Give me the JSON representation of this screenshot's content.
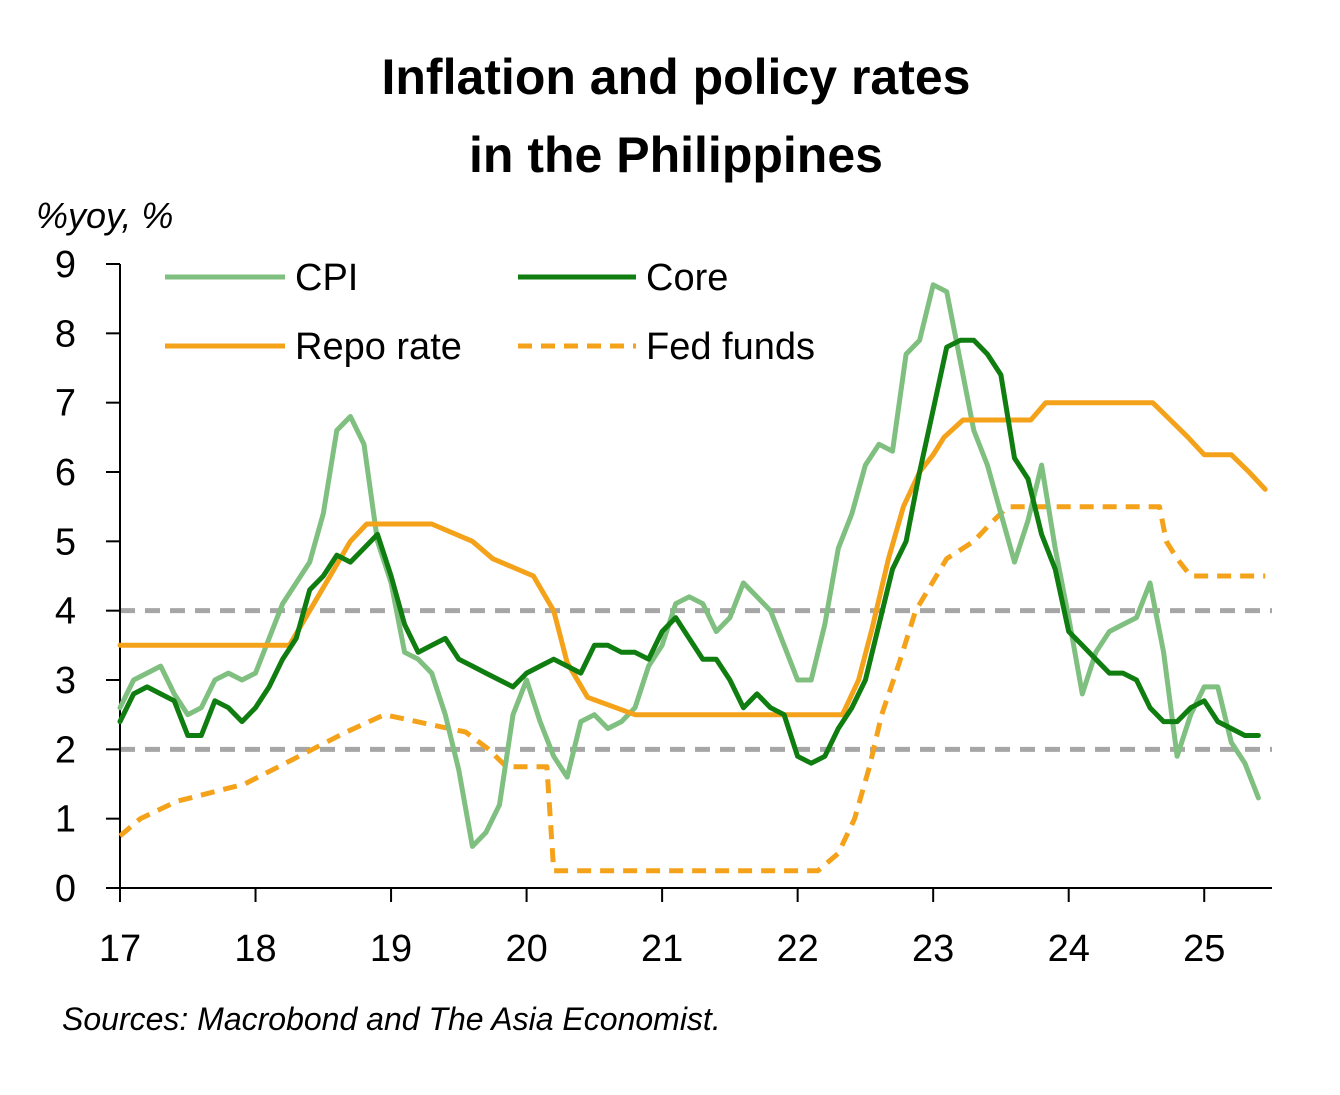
{
  "chart_data": {
    "type": "line",
    "title_lines": [
      "Inflation and policy rates",
      "in the Philippines"
    ],
    "ylabel": "%yoy, %",
    "ylim": [
      0,
      9
    ],
    "yticks": [
      "0",
      "1",
      "2",
      "3",
      "4",
      "5",
      "6",
      "7",
      "8",
      "9"
    ],
    "xlim": [
      2017.0,
      2025.5
    ],
    "xticks": [
      {
        "value": 2017,
        "label": "17"
      },
      {
        "value": 2018,
        "label": "18"
      },
      {
        "value": 2019,
        "label": "19"
      },
      {
        "value": 2020,
        "label": "20"
      },
      {
        "value": 2021,
        "label": "21"
      },
      {
        "value": 2022,
        "label": "22"
      },
      {
        "value": 2023,
        "label": "23"
      },
      {
        "value": 2024,
        "label": "24"
      },
      {
        "value": 2025,
        "label": "25"
      }
    ],
    "reference_lines": [
      2,
      4
    ],
    "source": "Sources: Macrobond and The Asia Economist.",
    "legend_position": "top-left",
    "colors": {
      "cpi": "#7fbf7f",
      "core": "#0f7d0f",
      "policy": "#f5a21b",
      "reference": "#a6a6a6",
      "axis": "#000000"
    },
    "series": [
      {
        "name": "CPI",
        "style": "solid",
        "x": [
          2017.0,
          2017.1,
          2017.2,
          2017.3,
          2017.4,
          2017.5,
          2017.6,
          2017.7,
          2017.8,
          2017.9,
          2018.0,
          2018.1,
          2018.2,
          2018.3,
          2018.4,
          2018.5,
          2018.6,
          2018.7,
          2018.8,
          2018.9,
          2019.0,
          2019.1,
          2019.2,
          2019.3,
          2019.4,
          2019.5,
          2019.6,
          2019.7,
          2019.8,
          2019.9,
          2020.0,
          2020.1,
          2020.2,
          2020.3,
          2020.4,
          2020.5,
          2020.6,
          2020.7,
          2020.8,
          2020.9,
          2021.0,
          2021.1,
          2021.2,
          2021.3,
          2021.4,
          2021.5,
          2021.6,
          2021.7,
          2021.8,
          2021.9,
          2022.0,
          2022.1,
          2022.2,
          2022.3,
          2022.4,
          2022.5,
          2022.6,
          2022.7,
          2022.8,
          2022.9,
          2023.0,
          2023.1,
          2023.2,
          2023.3,
          2023.4,
          2023.5,
          2023.6,
          2023.7,
          2023.8,
          2023.9,
          2024.0,
          2024.1,
          2024.2,
          2024.3,
          2024.4,
          2024.5,
          2024.6,
          2024.7,
          2024.8,
          2024.9,
          2025.0,
          2025.1,
          2025.2,
          2025.3,
          2025.4
        ],
        "values": [
          2.6,
          3.0,
          3.1,
          3.2,
          2.8,
          2.5,
          2.6,
          3.0,
          3.1,
          3.0,
          3.1,
          3.6,
          4.1,
          4.4,
          4.7,
          5.4,
          6.6,
          6.8,
          6.4,
          5.0,
          4.4,
          3.4,
          3.3,
          3.1,
          2.5,
          1.7,
          0.6,
          0.8,
          1.2,
          2.5,
          3.0,
          2.4,
          1.9,
          1.6,
          2.4,
          2.5,
          2.3,
          2.4,
          2.6,
          3.2,
          3.5,
          4.1,
          4.2,
          4.1,
          3.7,
          3.9,
          4.4,
          4.2,
          4.0,
          3.5,
          3.0,
          3.0,
          3.8,
          4.9,
          5.4,
          6.1,
          6.4,
          6.3,
          7.7,
          7.9,
          8.7,
          8.6,
          7.6,
          6.6,
          6.1,
          5.4,
          4.7,
          5.3,
          6.1,
          4.9,
          3.9,
          2.8,
          3.4,
          3.7,
          3.8,
          3.9,
          4.4,
          3.4,
          1.9,
          2.5,
          2.9,
          2.9,
          2.1,
          1.8,
          1.3
        ]
      },
      {
        "name": "Core",
        "style": "solid",
        "x": [
          2017.0,
          2017.1,
          2017.2,
          2017.3,
          2017.4,
          2017.5,
          2017.6,
          2017.7,
          2017.8,
          2017.9,
          2018.0,
          2018.1,
          2018.2,
          2018.3,
          2018.4,
          2018.5,
          2018.6,
          2018.7,
          2018.8,
          2018.9,
          2019.0,
          2019.1,
          2019.2,
          2019.3,
          2019.4,
          2019.5,
          2019.6,
          2019.7,
          2019.8,
          2019.9,
          2020.0,
          2020.1,
          2020.2,
          2020.3,
          2020.4,
          2020.5,
          2020.6,
          2020.7,
          2020.8,
          2020.9,
          2021.0,
          2021.1,
          2021.2,
          2021.3,
          2021.4,
          2021.5,
          2021.6,
          2021.7,
          2021.8,
          2021.9,
          2022.0,
          2022.1,
          2022.2,
          2022.3,
          2022.4,
          2022.5,
          2022.6,
          2022.7,
          2022.8,
          2022.9,
          2023.0,
          2023.1,
          2023.2,
          2023.3,
          2023.4,
          2023.5,
          2023.6,
          2023.7,
          2023.8,
          2023.9,
          2024.0,
          2024.1,
          2024.2,
          2024.3,
          2024.4,
          2024.5,
          2024.6,
          2024.7,
          2024.8,
          2024.9,
          2025.0,
          2025.1,
          2025.2,
          2025.3,
          2025.4
        ],
        "values": [
          2.4,
          2.8,
          2.9,
          2.8,
          2.7,
          2.2,
          2.2,
          2.7,
          2.6,
          2.4,
          2.6,
          2.9,
          3.3,
          3.6,
          4.3,
          4.5,
          4.8,
          4.7,
          4.9,
          5.1,
          4.5,
          3.8,
          3.4,
          3.5,
          3.6,
          3.3,
          3.2,
          3.1,
          3.0,
          2.9,
          3.1,
          3.2,
          3.3,
          3.2,
          3.1,
          3.5,
          3.5,
          3.4,
          3.4,
          3.3,
          3.7,
          3.9,
          3.6,
          3.3,
          3.3,
          3.0,
          2.6,
          2.8,
          2.6,
          2.5,
          1.9,
          1.8,
          1.9,
          2.3,
          2.6,
          3.0,
          3.8,
          4.6,
          5.0,
          6.0,
          6.9,
          7.8,
          7.9,
          7.9,
          7.7,
          7.4,
          6.2,
          5.9,
          5.1,
          4.6,
          3.7,
          3.5,
          3.3,
          3.1,
          3.1,
          3.0,
          2.6,
          2.4,
          2.4,
          2.6,
          2.7,
          2.4,
          2.3,
          2.2,
          2.2
        ]
      },
      {
        "name": "Repo rate",
        "style": "solid",
        "x": [
          2017.0,
          2018.25,
          2018.4,
          2018.55,
          2018.7,
          2018.82,
          2019.3,
          2019.6,
          2019.75,
          2020.05,
          2020.2,
          2020.3,
          2020.45,
          2020.8,
          2020.9,
          2022.33,
          2022.45,
          2022.55,
          2022.67,
          2022.78,
          2022.9,
          2023.0,
          2023.08,
          2023.22,
          2023.72,
          2023.83,
          2024.62,
          2024.75,
          2024.88,
          2025.0,
          2025.2,
          2025.33,
          2025.45
        ],
        "values": [
          3.5,
          3.5,
          4.0,
          4.5,
          5.0,
          5.25,
          5.25,
          5.0,
          4.75,
          4.5,
          4.0,
          3.25,
          2.75,
          2.5,
          2.5,
          2.5,
          3.0,
          3.75,
          4.75,
          5.5,
          6.0,
          6.25,
          6.5,
          6.75,
          6.75,
          7.0,
          7.0,
          6.75,
          6.5,
          6.25,
          6.25,
          6.0,
          5.75
        ]
      },
      {
        "name": "Fed funds",
        "style": "dashed",
        "x": [
          2017.0,
          2017.15,
          2017.42,
          2017.92,
          2018.17,
          2018.42,
          2018.67,
          2018.95,
          2019.55,
          2019.72,
          2019.85,
          2020.15,
          2020.2,
          2022.15,
          2022.3,
          2022.42,
          2022.53,
          2022.62,
          2022.75,
          2022.87,
          2023.1,
          2023.3,
          2023.42,
          2023.55,
          2024.67,
          2024.72,
          2024.8,
          2024.9,
          2025.45
        ],
        "values": [
          0.75,
          1.0,
          1.25,
          1.5,
          1.75,
          2.0,
          2.25,
          2.5,
          2.25,
          2.0,
          1.75,
          1.75,
          0.25,
          0.25,
          0.5,
          1.0,
          1.75,
          2.5,
          3.25,
          4.0,
          4.75,
          5.0,
          5.25,
          5.5,
          5.5,
          5.0,
          4.75,
          4.5,
          4.5
        ]
      }
    ]
  }
}
